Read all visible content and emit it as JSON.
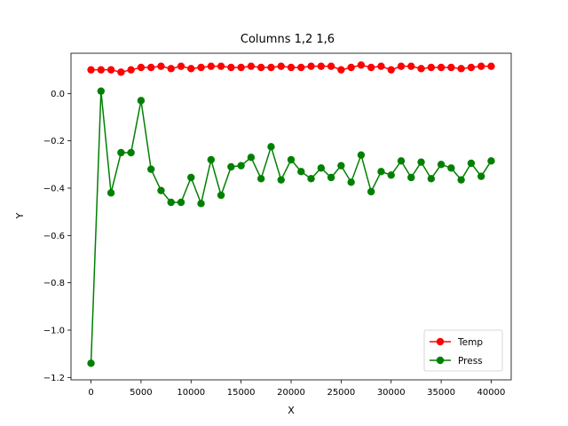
{
  "chart_data": {
    "type": "line",
    "title": "Columns 1,2 1,6",
    "xlabel": "X",
    "ylabel": "Y",
    "xlim": [
      -2000,
      42000
    ],
    "ylim": [
      -1.21,
      0.17
    ],
    "xticks": [
      0,
      5000,
      10000,
      15000,
      20000,
      25000,
      30000,
      35000,
      40000
    ],
    "xtick_labels": [
      "0",
      "5000",
      "10000",
      "15000",
      "20000",
      "25000",
      "30000",
      "35000",
      "40000"
    ],
    "yticks": [
      -1.2,
      -1.0,
      -0.8,
      -0.6,
      -0.4,
      -0.2,
      0.0
    ],
    "ytick_labels": [
      "−1.2",
      "−1.0",
      "−0.8",
      "−0.6",
      "−0.4",
      "−0.2",
      "0.0"
    ],
    "grid": false,
    "legend_position": "lower-right",
    "x": [
      0,
      1000,
      2000,
      3000,
      4000,
      5000,
      6000,
      7000,
      8000,
      9000,
      10000,
      11000,
      12000,
      13000,
      14000,
      15000,
      16000,
      17000,
      18000,
      19000,
      20000,
      21000,
      22000,
      23000,
      24000,
      25000,
      26000,
      27000,
      28000,
      29000,
      30000,
      31000,
      32000,
      33000,
      34000,
      35000,
      36000,
      37000,
      38000,
      39000,
      40000
    ],
    "series": [
      {
        "name": "Temp",
        "color": "#ff0000",
        "values": [
          0.1,
          0.1,
          0.1,
          0.09,
          0.1,
          0.11,
          0.11,
          0.115,
          0.105,
          0.115,
          0.105,
          0.11,
          0.115,
          0.115,
          0.11,
          0.11,
          0.115,
          0.11,
          0.11,
          0.115,
          0.11,
          0.11,
          0.115,
          0.115,
          0.115,
          0.1,
          0.11,
          0.12,
          0.11,
          0.115,
          0.1,
          0.115,
          0.115,
          0.105,
          0.11,
          0.11,
          0.11,
          0.105,
          0.11,
          0.115,
          0.115
        ]
      },
      {
        "name": "Press",
        "color": "#008000",
        "values": [
          -1.14,
          0.01,
          -0.42,
          -0.25,
          -0.25,
          -0.03,
          -0.32,
          -0.41,
          -0.46,
          -0.46,
          -0.355,
          -0.465,
          -0.28,
          -0.43,
          -0.31,
          -0.305,
          -0.27,
          -0.36,
          -0.225,
          -0.365,
          -0.28,
          -0.33,
          -0.36,
          -0.315,
          -0.355,
          -0.305,
          -0.375,
          -0.26,
          -0.415,
          -0.33,
          -0.345,
          -0.285,
          -0.355,
          -0.29,
          -0.36,
          -0.3,
          -0.315,
          -0.365,
          -0.295,
          -0.35,
          -0.285
        ]
      }
    ]
  }
}
